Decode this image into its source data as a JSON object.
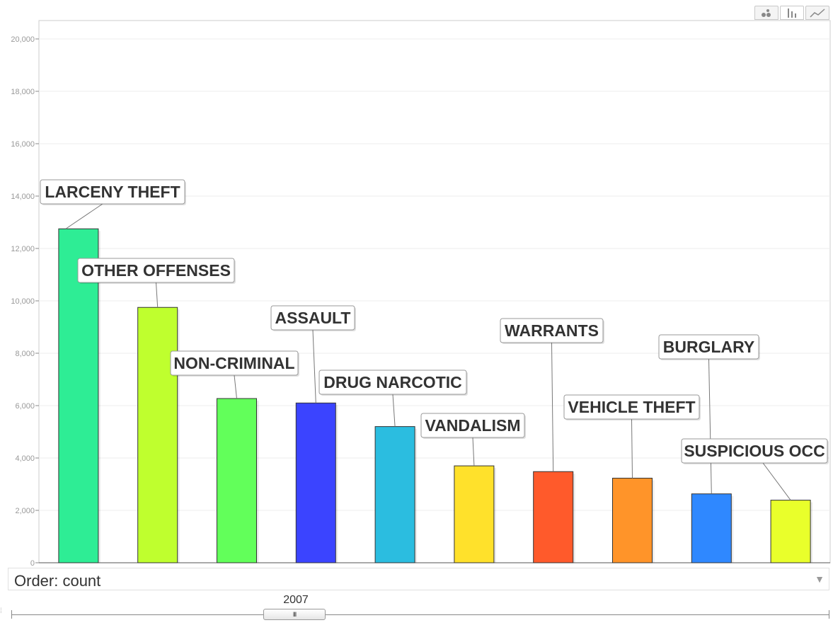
{
  "chart_data": {
    "type": "bar",
    "categories": [
      "LARCENY THEFT",
      "OTHER OFFENSES",
      "NON-CRIMINAL",
      "ASSAULT",
      "DRUG NARCOTIC",
      "VANDALISM",
      "WARRANTS",
      "VEHICLE THEFT",
      "BURGLARY",
      "SUSPICIOUS OCC"
    ],
    "values": [
      12750,
      9750,
      6270,
      6100,
      5200,
      3700,
      3480,
      3230,
      2630,
      2390
    ],
    "colors": [
      "#2eed95",
      "#bfff2e",
      "#62ff5a",
      "#3b44ff",
      "#2bbde0",
      "#ffe12b",
      "#ff5a2b",
      "#ff9429",
      "#2f88ff",
      "#e9ff2b"
    ],
    "title": "",
    "xlabel": "",
    "ylabel": "",
    "ylim": [
      0,
      20000
    ],
    "yticks": [
      "0",
      "2,000",
      "4,000",
      "6,000",
      "8,000",
      "10,000",
      "12,000",
      "14,000",
      "16,000",
      "18,000",
      "20,000"
    ],
    "grid": true,
    "legend": "none"
  },
  "controls": {
    "order_label": "Order: count",
    "order_arrow": "▼",
    "year": "2007",
    "thumb_grip": "III",
    "views": [
      "bubble-view-icon",
      "bar-view-icon",
      "line-view-icon"
    ]
  }
}
